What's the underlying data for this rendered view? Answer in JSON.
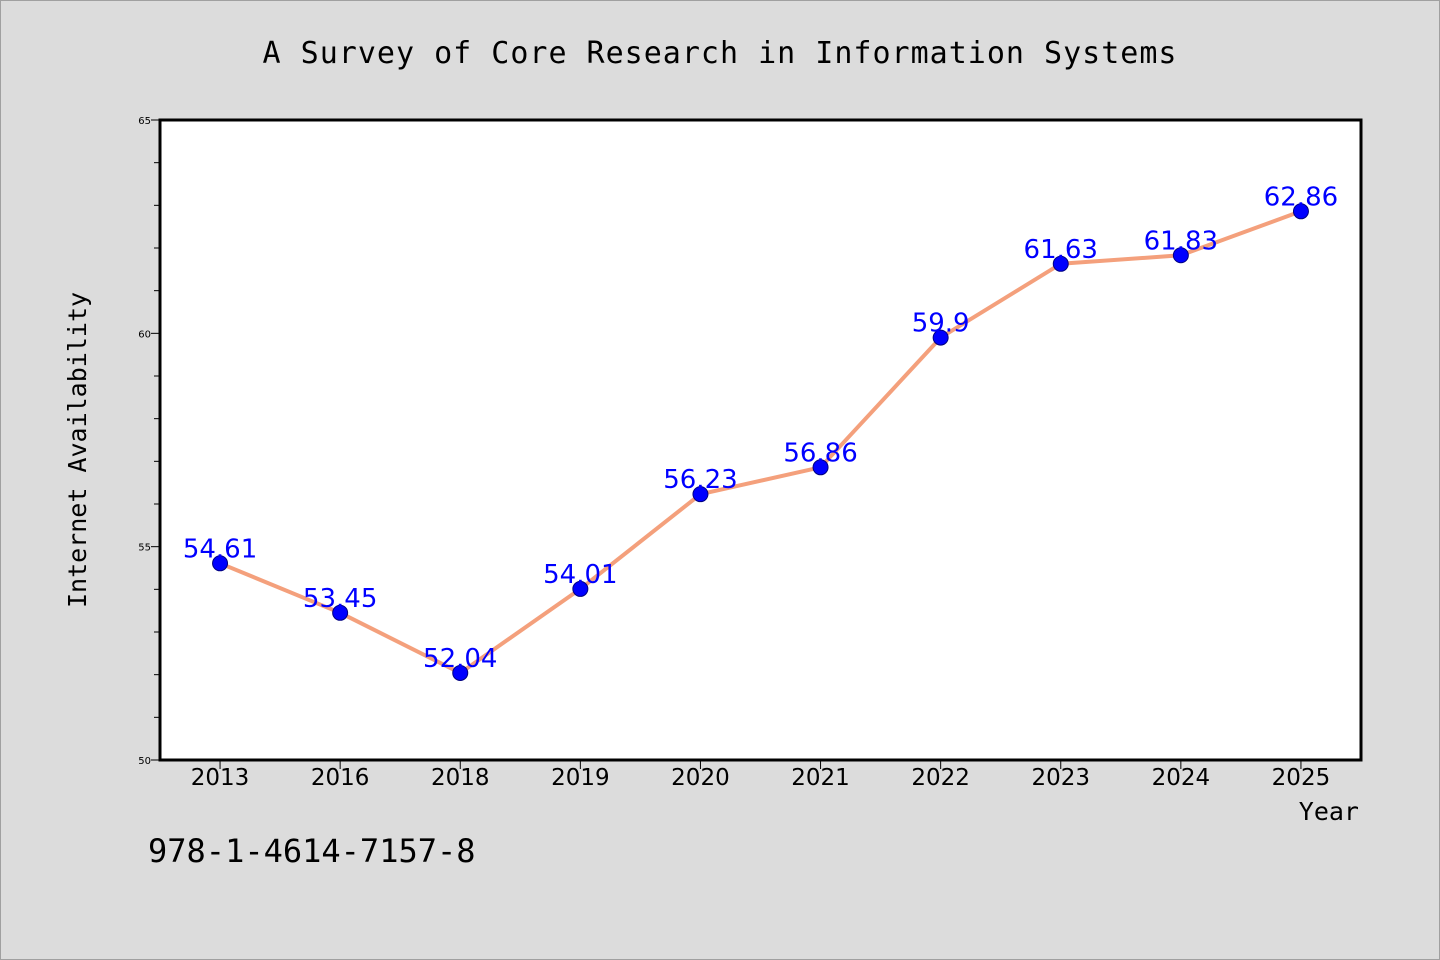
{
  "chart_data": {
    "type": "line",
    "title": "A Survey of Core Research in Information Systems",
    "xlabel": "Year",
    "ylabel": "Internet Availability",
    "categories": [
      "2013",
      "2016",
      "2018",
      "2019",
      "2020",
      "2021",
      "2022",
      "2023",
      "2024",
      "2025"
    ],
    "series": [
      {
        "values": [
          54.61,
          53.45,
          52.04,
          54.01,
          56.23,
          56.86,
          59.9,
          61.63,
          61.83,
          62.86
        ],
        "labels": [
          "54.61",
          "53.45",
          "52.04",
          "54.01",
          "56.23",
          "56.86",
          "59.9",
          "61.63",
          "61.83",
          "62.86"
        ]
      }
    ],
    "ylim": [
      50,
      65
    ],
    "yticks": [
      50,
      55,
      60,
      65
    ],
    "ytick_labels": [
      "50",
      "55",
      "60",
      "65"
    ],
    "grid": false,
    "legend": "none",
    "colors": {
      "line": "#f4a07c",
      "marker": "#0000ff",
      "marker_edge": "#000080",
      "data_label": "#0000ff",
      "background": "#dcdcdc",
      "plot_area": "#ffffff"
    }
  },
  "footer": {
    "isbn": "978-1-4614-7157-8"
  }
}
